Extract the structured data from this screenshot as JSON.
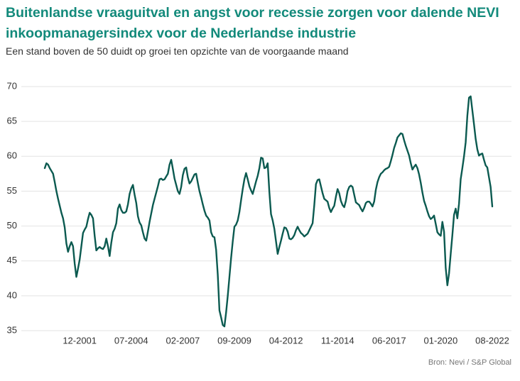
{
  "chart_data": {
    "type": "line",
    "title": "Buitenlandse vraaguitval en angst voor recessie zorgen voor dalende NEVI inkoopmanagersindex voor de Nederlandse industrie",
    "subtitle": "Een stand boven de 50 duidt op groei ten opzichte van de voorgaande maand",
    "source": "Bron: Nevi / S&P Global",
    "categories": [
      null,
      null,
      null,
      null,
      null,
      null,
      null,
      null,
      null,
      null,
      null,
      null,
      null,
      null,
      null,
      null,
      null,
      null,
      null,
      null,
      null,
      "12-2001",
      null,
      null,
      null,
      null,
      null,
      null,
      null,
      null,
      null,
      null,
      null,
      null,
      null,
      null,
      null,
      null,
      null,
      null,
      null,
      null,
      null,
      null,
      null,
      null,
      null,
      null,
      null,
      null,
      null,
      null,
      "07-2004",
      null,
      null,
      null,
      null,
      null,
      null,
      null,
      null,
      null,
      null,
      null,
      null,
      null,
      null,
      null,
      null,
      null,
      null,
      null,
      null,
      null,
      null,
      null,
      null,
      null,
      null,
      null,
      null,
      null,
      null,
      "02-2007",
      null,
      null,
      null,
      null,
      null,
      null,
      null,
      null,
      null,
      null,
      null,
      null,
      null,
      null,
      null,
      null,
      null,
      null,
      null,
      null,
      null,
      null,
      null,
      null,
      null,
      null,
      null,
      null,
      null,
      null,
      "09-2009",
      null,
      null,
      null,
      null,
      null,
      null,
      null,
      null,
      null,
      null,
      null,
      null,
      null,
      null,
      null,
      null,
      null,
      null,
      null,
      null,
      null,
      null,
      null,
      null,
      null,
      null,
      null,
      null,
      null,
      null,
      "04-2012",
      null,
      null,
      null,
      null,
      null,
      null,
      null,
      null,
      null,
      null,
      null,
      null,
      null,
      null,
      null,
      null,
      null,
      null,
      null,
      null,
      null,
      null,
      null,
      null,
      null,
      null,
      null,
      null,
      null,
      null,
      "11-2014",
      null,
      null,
      null,
      null,
      null,
      null,
      null,
      null,
      null,
      null,
      null,
      null,
      null,
      null,
      null,
      null,
      null,
      null,
      null,
      null,
      null,
      null,
      null,
      null,
      null,
      null,
      null,
      null,
      null,
      null,
      "06-2017",
      null,
      null,
      null,
      null,
      null,
      null,
      null,
      null,
      null,
      null,
      null,
      null,
      null,
      null,
      null,
      null,
      null,
      null,
      null,
      null,
      null,
      null,
      null,
      null,
      null,
      null,
      null,
      null,
      null,
      null,
      "01-2020",
      null,
      null,
      null,
      null,
      null,
      null,
      null,
      null,
      null,
      null,
      null,
      null,
      null,
      null,
      null,
      null,
      null,
      null,
      null,
      null,
      null,
      null,
      null,
      null,
      null,
      null,
      null,
      null,
      null,
      null,
      "08-2022"
    ],
    "series": [
      {
        "color": "#0b5a50",
        "values": [
          58.3,
          59.0,
          58.8,
          58.3,
          57.9,
          57.5,
          56.3,
          55.0,
          53.9,
          52.9,
          51.9,
          51.1,
          49.8,
          47.5,
          46.3,
          47.1,
          47.7,
          47.1,
          44.6,
          42.7,
          43.9,
          45.2,
          47.1,
          49.0,
          49.5,
          49.9,
          51.0,
          51.9,
          51.6,
          51.1,
          48.6,
          46.5,
          46.8,
          47.0,
          46.8,
          46.7,
          47.1,
          48.2,
          47.1,
          45.7,
          47.6,
          49.1,
          49.6,
          50.4,
          52.5,
          53.1,
          52.3,
          51.9,
          51.9,
          52.1,
          53.1,
          54.6,
          55.4,
          55.9,
          54.5,
          53.3,
          51.4,
          50.5,
          50.1,
          49.1,
          48.2,
          47.9,
          49.2,
          50.6,
          51.8,
          53.0,
          53.9,
          54.8,
          55.7,
          56.7,
          56.8,
          56.6,
          56.7,
          57.1,
          57.5,
          58.8,
          59.5,
          58.2,
          56.8,
          55.9,
          55.0,
          54.6,
          55.6,
          57.3,
          58.2,
          58.4,
          57.0,
          56.1,
          56.4,
          56.9,
          57.4,
          57.5,
          56.2,
          55.0,
          54.1,
          53.1,
          52.2,
          51.5,
          51.2,
          50.8,
          49.1,
          48.5,
          48.4,
          46.6,
          43.0,
          37.9,
          36.9,
          35.8,
          35.6,
          37.6,
          40.0,
          42.7,
          45.4,
          47.8,
          49.9,
          50.2,
          50.8,
          52.0,
          53.7,
          55.3,
          56.7,
          57.6,
          56.7,
          55.7,
          55.1,
          54.6,
          55.5,
          56.4,
          57.2,
          58.3,
          59.8,
          59.7,
          58.3,
          58.4,
          59.0,
          54.9,
          51.7,
          50.8,
          49.6,
          47.8,
          46.0,
          47.0,
          47.9,
          48.9,
          49.8,
          49.7,
          49.2,
          48.2,
          48.1,
          48.3,
          48.7,
          49.4,
          49.9,
          49.4,
          49.0,
          48.8,
          48.5,
          48.7,
          48.9,
          49.4,
          49.9,
          50.4,
          53.0,
          56.0,
          56.6,
          56.7,
          55.7,
          54.7,
          53.9,
          53.7,
          53.5,
          52.6,
          52.0,
          52.5,
          52.9,
          54.2,
          55.3,
          54.7,
          53.6,
          53.0,
          52.7,
          53.6,
          55.0,
          55.6,
          55.8,
          55.6,
          54.5,
          53.4,
          53.2,
          53.0,
          52.5,
          52.1,
          52.6,
          53.3,
          53.5,
          53.5,
          53.2,
          52.8,
          53.5,
          55.2,
          56.3,
          57.0,
          57.5,
          57.7,
          58.0,
          58.2,
          58.3,
          58.5,
          59.3,
          60.2,
          61.2,
          61.9,
          62.7,
          63.0,
          63.3,
          63.2,
          62.3,
          61.5,
          60.8,
          60.1,
          59.0,
          58.1,
          58.5,
          58.8,
          58.3,
          57.4,
          56.2,
          54.8,
          53.6,
          52.9,
          52.1,
          51.4,
          51.0,
          51.2,
          51.5,
          50.3,
          49.1,
          48.8,
          48.6,
          50.6,
          49.2,
          44.0,
          41.5,
          43.2,
          46.0,
          48.7,
          51.6,
          52.5,
          51.1,
          53.2,
          56.7,
          58.3,
          60.0,
          62.0,
          65.8,
          68.4,
          68.6,
          66.6,
          64.6,
          62.5,
          61.0,
          60.1,
          60.3,
          60.4,
          59.5,
          58.7,
          58.4,
          57.0,
          55.6,
          52.8
        ]
      }
    ],
    "ylim": [
      35,
      70
    ],
    "yticks": [
      35,
      40,
      45,
      50,
      55,
      60,
      65,
      70
    ],
    "grid": true
  }
}
